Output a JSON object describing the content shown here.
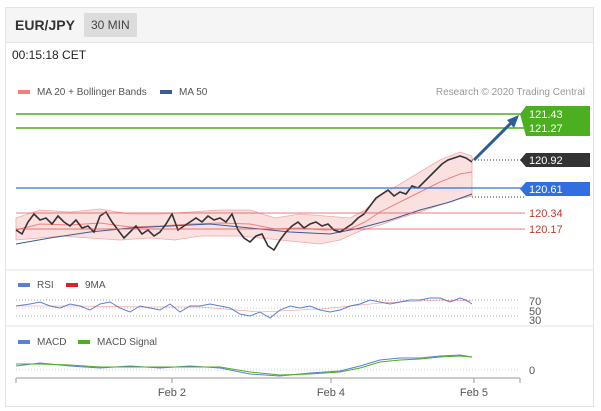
{
  "header": {
    "symbol": "EUR/JPY",
    "timeframe": "30 MIN"
  },
  "timestamp": "00:15:18 CET",
  "legend_main": [
    {
      "label": "MA 20 + Bollinger Bands",
      "color": "#f08080"
    },
    {
      "label": "MA 50",
      "color": "#3a5a98"
    }
  ],
  "credit": "Research © 2020 Trading Central",
  "levels": {
    "resistance_2": "121.43",
    "resistance_1": "121.27",
    "last": "120.92",
    "pivot": "120.61",
    "support_1": "120.34",
    "support_2": "120.17"
  },
  "legend_rsi": [
    {
      "label": "RSI",
      "color": "#5a7fd6"
    },
    {
      "label": "9MA",
      "color": "#e02020"
    }
  ],
  "rsi_axis": [
    "70",
    "50",
    "30"
  ],
  "legend_macd": [
    {
      "label": "MACD",
      "color": "#5a7fd6"
    },
    {
      "label": "MACD Signal",
      "color": "#4caf20"
    }
  ],
  "macd_axis": [
    "0"
  ],
  "x_axis": [
    "Feb 2",
    "Feb 4",
    "Feb 5"
  ],
  "colors": {
    "resistance": "#4caf20",
    "pivot": "#2f6fe0",
    "support": "#e05050",
    "last": "#333333",
    "arrow": "#2a5d9f"
  }
}
